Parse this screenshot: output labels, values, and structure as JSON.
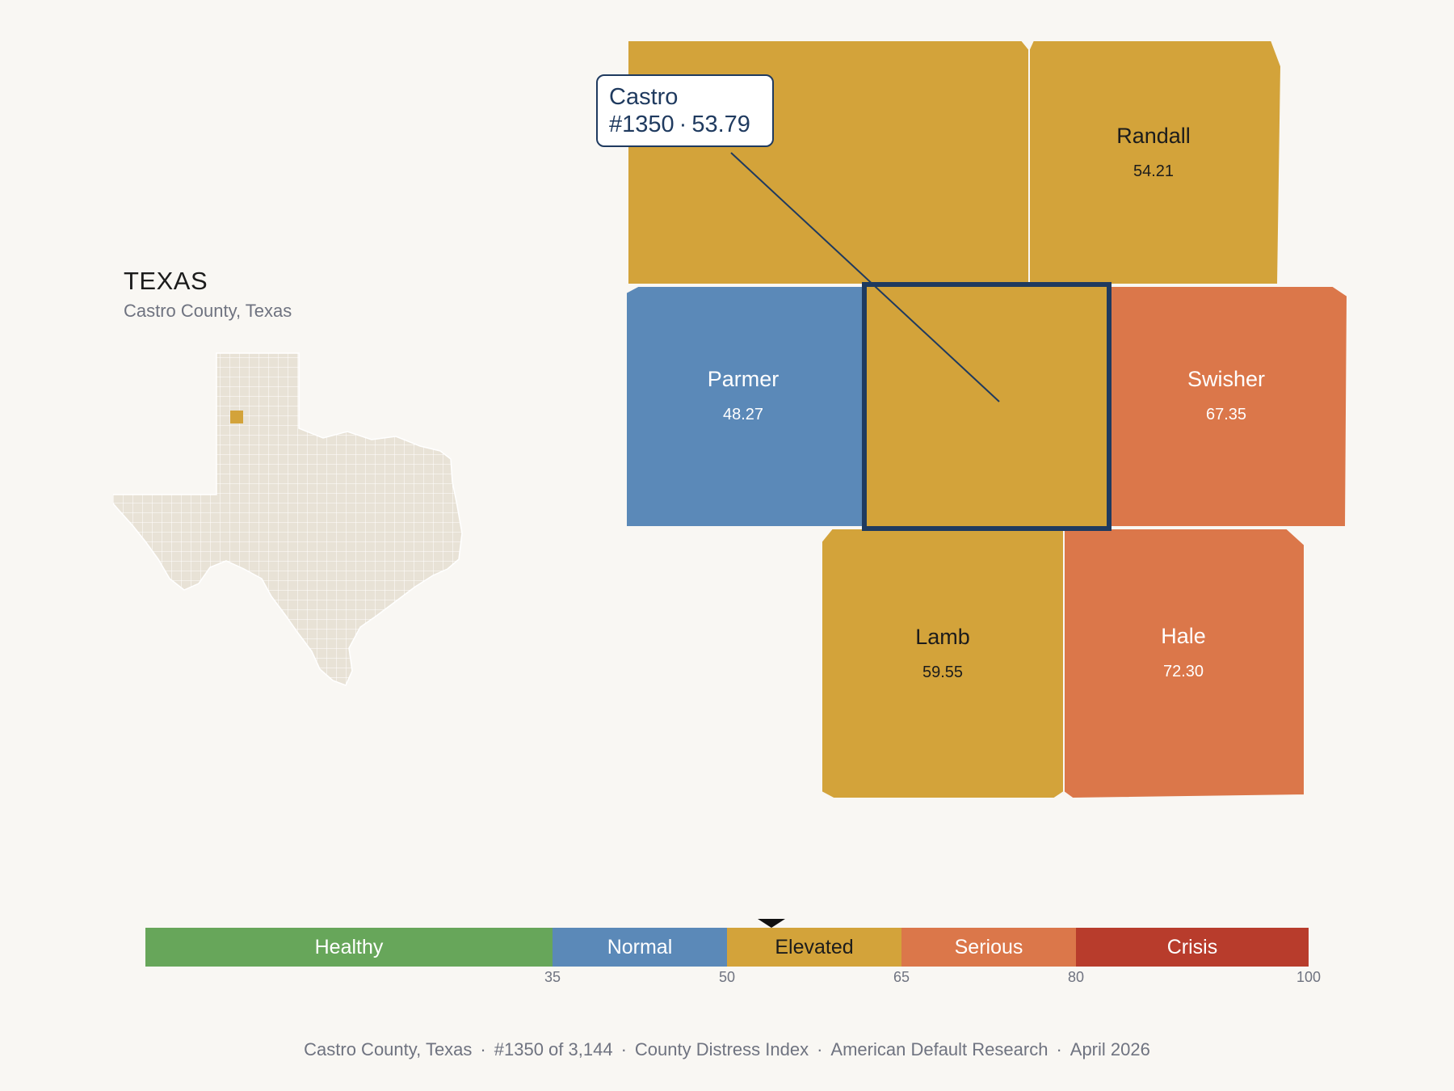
{
  "state_panel": {
    "title": "TEXAS",
    "subtitle": "Castro County, Texas"
  },
  "callout": {
    "name": "Castro",
    "rank": "#1350",
    "separator": "·",
    "score": "53.79"
  },
  "counties": [
    {
      "id": "castro",
      "name": "Castro",
      "score": 53.79,
      "category": "Elevated",
      "selected": true
    },
    {
      "id": "deafsmith",
      "name": "",
      "score": null,
      "category": "Elevated"
    },
    {
      "id": "randall",
      "name": "Randall",
      "score": 54.21,
      "category": "Elevated"
    },
    {
      "id": "parmer",
      "name": "Parmer",
      "score": 48.27,
      "category": "Normal"
    },
    {
      "id": "swisher",
      "name": "Swisher",
      "score": 67.35,
      "category": "Serious"
    },
    {
      "id": "lamb",
      "name": "Lamb",
      "score": 59.55,
      "category": "Elevated"
    },
    {
      "id": "hale",
      "name": "Hale",
      "score": 72.3,
      "category": "Serious"
    }
  ],
  "legend": {
    "min": 0,
    "max": 100,
    "marker_value": 53.79,
    "segments": [
      {
        "label": "Healthy",
        "from": 0,
        "to": 35,
        "color": "#67a65a",
        "text_color": "#ffffff"
      },
      {
        "label": "Normal",
        "from": 35,
        "to": 50,
        "color": "#5b89b8",
        "text_color": "#ffffff"
      },
      {
        "label": "Elevated",
        "from": 50,
        "to": 65,
        "color": "#d3a33a",
        "text_color": "#1c1c1c"
      },
      {
        "label": "Serious",
        "from": 65,
        "to": 80,
        "color": "#db774a",
        "text_color": "#ffffff"
      },
      {
        "label": "Crisis",
        "from": 80,
        "to": 100,
        "color": "#b83c2c",
        "text_color": "#ffffff"
      }
    ],
    "ticks": [
      "35",
      "50",
      "65",
      "80",
      "100"
    ]
  },
  "colors": {
    "background": "#f9f7f3",
    "state_fill": "#e8e2d6",
    "highlight": "#d3a33a",
    "selection_outline": "#1f3a5f"
  },
  "footer": {
    "parts": [
      "Castro County, Texas",
      "#1350 of 3,144",
      "County Distress Index",
      "American Default Research",
      "April 2026"
    ],
    "separator": "·"
  }
}
